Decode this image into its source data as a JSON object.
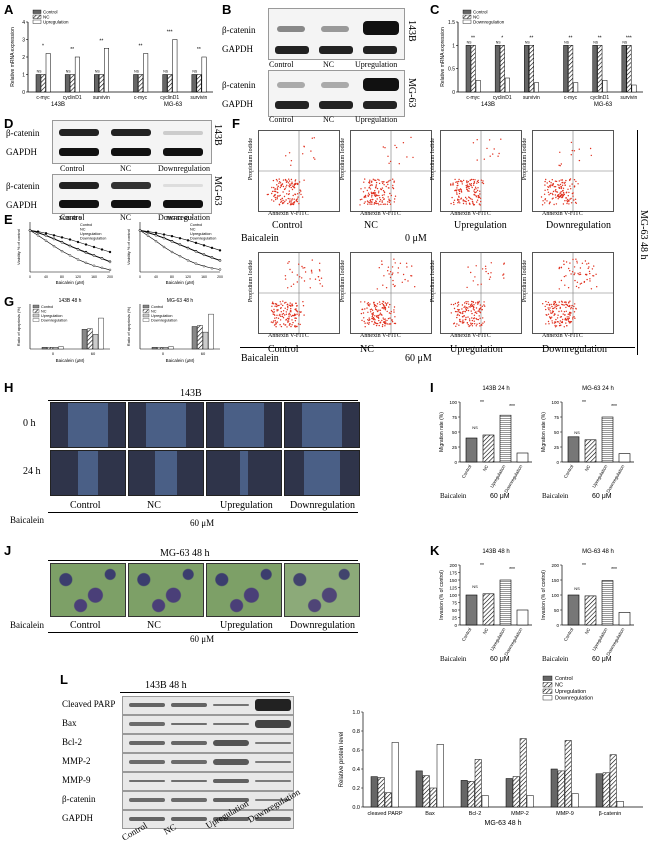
{
  "panels": {
    "A": {
      "label": "A",
      "ylabel": "Relative mRNA expression",
      "legend": [
        "Control",
        "NC",
        "Upregulation"
      ],
      "genes": [
        "c-myc",
        "cyclinD1",
        "survivin",
        "c-myc",
        "cyclinD1",
        "survivin"
      ],
      "groups": [
        "143B",
        "MG-63"
      ],
      "sig": [
        "*",
        "**",
        "**",
        "**",
        "***",
        "**"
      ],
      "ns": "NS"
    },
    "B": {
      "label": "B",
      "rows": [
        "β-catenin",
        "GAPDH",
        "β-catenin",
        "GAPDH"
      ],
      "lanes": [
        "Control",
        "NC",
        "Upregulation"
      ],
      "cells": [
        "143B",
        "MG-63"
      ]
    },
    "C": {
      "label": "C",
      "ylabel": "Relative mRNA expression",
      "legend": [
        "Control",
        "NC",
        "Downregulation"
      ],
      "genes": [
        "c-myc",
        "cyclinD1",
        "survivin",
        "c-myc",
        "cyclinD1",
        "survivin"
      ],
      "groups": [
        "143B",
        "MG-63"
      ],
      "sig": [
        "**",
        "*",
        "**",
        "**",
        "**",
        "***"
      ],
      "ns": "NS"
    },
    "D": {
      "label": "D",
      "rows": [
        "β-catenin",
        "GAPDH",
        "β-catenin",
        "GAPDH"
      ],
      "lanes": [
        "Control",
        "NC",
        "Downregulation"
      ],
      "cells": [
        "143B",
        "MG-63"
      ]
    },
    "E": {
      "label": "E",
      "titles": [
        "143B 48 h",
        "MG-63 48 h"
      ],
      "xlabel": "Baicalein (μM)",
      "ylabel": "Viability % of control",
      "legend": [
        "Control",
        "NC",
        "Upregulation",
        "Downregulation"
      ],
      "xticks": [
        "0",
        "20",
        "40",
        "60",
        "80",
        "100",
        "120",
        "140",
        "160",
        "180",
        "200"
      ]
    },
    "F": {
      "label": "F",
      "xaxis": "Annexin V-FITC",
      "yaxis": "Propidium Iodide",
      "groups": [
        "Control",
        "NC",
        "Upregulation",
        "Downregulation"
      ],
      "row_label": "Baicalein",
      "doses": [
        "0 μM",
        "60 μM"
      ],
      "side": "MG-63  48 h"
    },
    "G": {
      "label": "G",
      "titles": [
        "143B 48 h",
        "MG-63 48 h"
      ],
      "xlabel": "Baicalein (μM)",
      "ylabel": "Ratio of apoptosis (%)",
      "legend": [
        "Control",
        "NC",
        "Upregulation",
        "Downregulation"
      ],
      "xticks": [
        "0",
        "60"
      ]
    },
    "H": {
      "label": "H",
      "title": "143B",
      "times": [
        "0 h",
        "24 h"
      ],
      "groups": [
        "Control",
        "NC",
        "Upregulation",
        "Downregulation"
      ],
      "row_label": "Baicalein",
      "dose": "60 μM"
    },
    "I": {
      "label": "I",
      "titles": [
        "143B  24 h",
        "MG-63  24 h"
      ],
      "ylabel": "Migration rate (%)",
      "groups": [
        "Control",
        "NC",
        "Upregulation",
        "Downregulation"
      ],
      "row_label": "Baicalein",
      "dose": "60 μM"
    },
    "J": {
      "label": "J",
      "title": "MG-63  48 h",
      "groups": [
        "Control",
        "NC",
        "Upregulation",
        "Downregulation"
      ],
      "row_label": "Baicalein",
      "dose": "60 μM"
    },
    "K": {
      "label": "K",
      "titles": [
        "143B  48 h",
        "MG-63  48 h"
      ],
      "ylabel": "Invasion (% of control)",
      "groups": [
        "Control",
        "NC",
        "Upregulation",
        "Downregulation"
      ],
      "row_label": "Baicalein",
      "dose": "60 μM"
    },
    "L": {
      "label": "L",
      "title": "143B  48 h",
      "rows": [
        "Cleaved PARP",
        "Bax",
        "Bcl-2",
        "MMP-2",
        "MMP-9",
        "β-catenin",
        "GAPDH"
      ],
      "lanes": [
        "Control",
        "NC",
        "Upregulation",
        "Downregulation"
      ],
      "chart_title": "MG-63 48 h",
      "ylabel": "Relative protein level",
      "legend": [
        "Control",
        "NC",
        "Upregulation",
        "Downregulation"
      ],
      "categories": [
        "cleaved PARP",
        "Bax",
        "Bcl-2",
        "MMP-2",
        "MMP-9",
        "β-catenin"
      ]
    }
  },
  "chart_data": [
    {
      "type": "bar",
      "panel": "A",
      "categories": [
        "c-myc",
        "cyclinD1",
        "survivin",
        "c-myc",
        "cyclinD1",
        "survivin"
      ],
      "series": [
        {
          "name": "Control",
          "values": [
            1,
            1,
            1,
            1,
            1,
            1
          ]
        },
        {
          "name": "NC",
          "values": [
            1,
            1,
            1,
            1,
            1,
            1
          ]
        },
        {
          "name": "Upregulation",
          "values": [
            2.2,
            2.0,
            2.5,
            2.2,
            3.0,
            2.0
          ]
        }
      ],
      "ylim": [
        0,
        4
      ],
      "yticks": [
        0,
        1,
        2,
        3,
        4
      ]
    },
    {
      "type": "bar",
      "panel": "C",
      "categories": [
        "c-myc",
        "cyclinD1",
        "survivin",
        "c-myc",
        "cyclinD1",
        "survivin"
      ],
      "series": [
        {
          "name": "Control",
          "values": [
            1,
            1,
            1,
            1,
            1,
            1
          ]
        },
        {
          "name": "NC",
          "values": [
            1,
            1,
            1,
            1,
            1,
            1
          ]
        },
        {
          "name": "Downregulation",
          "values": [
            0.25,
            0.3,
            0.2,
            0.2,
            0.25,
            0.15
          ]
        }
      ],
      "ylim": [
        0,
        1.5
      ],
      "yticks": [
        0.0,
        0.5,
        1.0,
        1.5
      ]
    },
    {
      "type": "line",
      "panel": "E-143B",
      "x": [
        0,
        20,
        40,
        60,
        80,
        100,
        120,
        140,
        160,
        180,
        200
      ],
      "series": [
        {
          "name": "Control",
          "values": [
            100,
            95,
            88,
            80,
            72,
            63,
            55,
            48,
            40,
            33,
            25
          ]
        },
        {
          "name": "NC",
          "values": [
            100,
            94,
            87,
            79,
            71,
            62,
            54,
            46,
            39,
            32,
            24
          ]
        },
        {
          "name": "Upregulation",
          "values": [
            100,
            97,
            93,
            88,
            83,
            78,
            72,
            66,
            60,
            54,
            48
          ]
        },
        {
          "name": "Downregulation",
          "values": [
            100,
            88,
            75,
            62,
            50,
            40,
            30,
            22,
            15,
            10,
            5
          ]
        }
      ],
      "ylim": [
        0,
        120
      ]
    },
    {
      "type": "line",
      "panel": "E-MG63",
      "x": [
        0,
        20,
        40,
        60,
        80,
        100,
        120,
        140,
        160,
        180,
        200
      ],
      "series": [
        {
          "name": "Control",
          "values": [
            100,
            95,
            89,
            82,
            74,
            66,
            58,
            50,
            42,
            35,
            28
          ]
        },
        {
          "name": "NC",
          "values": [
            100,
            94,
            88,
            81,
            73,
            65,
            57,
            49,
            41,
            34,
            27
          ]
        },
        {
          "name": "Upregulation",
          "values": [
            100,
            97,
            94,
            90,
            86,
            81,
            76,
            70,
            64,
            58,
            52
          ]
        },
        {
          "name": "Downregulation",
          "values": [
            100,
            87,
            74,
            60,
            48,
            38,
            28,
            20,
            14,
            9,
            6
          ]
        }
      ],
      "ylim": [
        0,
        120
      ]
    },
    {
      "type": "bar",
      "panel": "G-143B",
      "categories": [
        "0",
        "60"
      ],
      "series": [
        {
          "name": "Control",
          "values": [
            3,
            35
          ]
        },
        {
          "name": "NC",
          "values": [
            3,
            36
          ]
        },
        {
          "name": "Upregulation",
          "values": [
            3,
            26
          ]
        },
        {
          "name": "Downregulation",
          "values": [
            4,
            55
          ]
        }
      ],
      "ylim": [
        0,
        80
      ]
    },
    {
      "type": "bar",
      "panel": "G-MG63",
      "categories": [
        "0",
        "60"
      ],
      "series": [
        {
          "name": "Control",
          "values": [
            3,
            40
          ]
        },
        {
          "name": "NC",
          "values": [
            3,
            42
          ]
        },
        {
          "name": "Upregulation",
          "values": [
            3,
            30
          ]
        },
        {
          "name": "Downregulation",
          "values": [
            4,
            62
          ]
        }
      ],
      "ylim": [
        0,
        80
      ]
    },
    {
      "type": "bar",
      "panel": "I-143B",
      "categories": [
        "Control",
        "NC",
        "Upregulation",
        "Downregulation"
      ],
      "values": [
        40,
        45,
        78,
        15
      ],
      "ylim": [
        0,
        100
      ],
      "yticks": [
        0,
        25,
        50,
        75,
        100
      ]
    },
    {
      "type": "bar",
      "panel": "I-MG63",
      "categories": [
        "Control",
        "NC",
        "Upregulation",
        "Downregulation"
      ],
      "values": [
        42,
        37,
        75,
        14
      ],
      "ylim": [
        0,
        100
      ],
      "yticks": [
        0,
        25,
        50,
        75,
        100
      ]
    },
    {
      "type": "bar",
      "panel": "K-143B",
      "categories": [
        "Control",
        "NC",
        "Upregulation",
        "Downregulation"
      ],
      "values": [
        100,
        104,
        150,
        50
      ],
      "ylim": [
        0,
        200
      ],
      "yticks": [
        0,
        25,
        50,
        75,
        100,
        125,
        150,
        175,
        200
      ]
    },
    {
      "type": "bar",
      "panel": "K-MG63",
      "categories": [
        "Control",
        "NC",
        "Upregulation",
        "Downregulation"
      ],
      "values": [
        100,
        97,
        148,
        42
      ],
      "ylim": [
        0,
        200
      ],
      "yticks": [
        0,
        50,
        100,
        150,
        200
      ]
    },
    {
      "type": "bar",
      "panel": "L",
      "categories": [
        "cleaved PARP",
        "Bax",
        "Bcl-2",
        "MMP-2",
        "MMP-9",
        "β-catenin"
      ],
      "series": [
        {
          "name": "Control",
          "values": [
            0.32,
            0.38,
            0.28,
            0.3,
            0.4,
            0.35
          ]
        },
        {
          "name": "NC",
          "values": [
            0.31,
            0.33,
            0.27,
            0.32,
            0.38,
            0.36
          ]
        },
        {
          "name": "Upregulation",
          "values": [
            0.15,
            0.2,
            0.5,
            0.72,
            0.7,
            0.55
          ]
        },
        {
          "name": "Downregulation",
          "values": [
            0.68,
            0.66,
            0.12,
            0.12,
            0.14,
            0.06
          ]
        }
      ],
      "ylim": [
        0,
        1.0
      ],
      "yticks": [
        0.0,
        0.2,
        0.4,
        0.6,
        0.8,
        1.0
      ]
    }
  ]
}
